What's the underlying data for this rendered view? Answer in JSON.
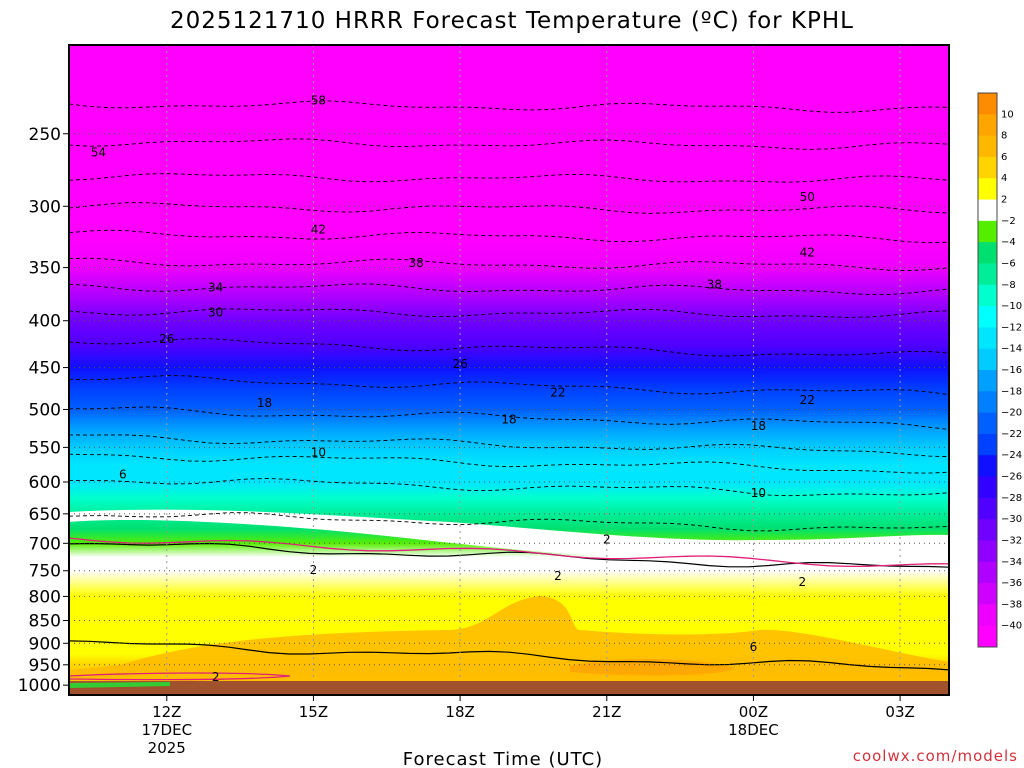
{
  "chart_data": {
    "type": "heatmap",
    "title": "2025121710 HRRR Forecast Temperature (ºC) for KPHL",
    "xlabel": "Forecast Time (UTC)",
    "ylabel": "",
    "watermark": "coolwx.com/models",
    "x_unit": "forecast hours from 2025-12-17 10Z",
    "x_range": [
      0,
      18
    ],
    "x_ticks": [
      {
        "hour": 2,
        "label": "12Z",
        "sub1": "17DEC",
        "sub2": "2025"
      },
      {
        "hour": 5,
        "label": "15Z",
        "sub1": "",
        "sub2": ""
      },
      {
        "hour": 8,
        "label": "18Z",
        "sub1": "",
        "sub2": ""
      },
      {
        "hour": 11,
        "label": "21Z",
        "sub1": "",
        "sub2": ""
      },
      {
        "hour": 14,
        "label": "00Z",
        "sub1": "18DEC",
        "sub2": ""
      },
      {
        "hour": 17,
        "label": "03Z",
        "sub1": "",
        "sub2": ""
      }
    ],
    "y_unit": "hPa",
    "y_range": [
      1025,
      200
    ],
    "y_ticks": [
      "250",
      "300",
      "350",
      "400",
      "450",
      "500",
      "550",
      "600",
      "650",
      "700",
      "750",
      "800",
      "850",
      "900",
      "950",
      "1000"
    ],
    "colorbar_labels": [
      "10",
      "8",
      "6",
      "4",
      "2",
      "−2",
      "−4",
      "−6",
      "−8",
      "−10",
      "−12",
      "−14",
      "−16",
      "−18",
      "−20",
      "−22",
      "−24",
      "−26",
      "−28",
      "−30",
      "−32",
      "−34",
      "−36",
      "−38",
      "−40"
    ],
    "colorbar_colors": [
      "#ff8c00",
      "#ffa500",
      "#ffb800",
      "#ffd400",
      "#ffff00",
      "#ffffff",
      "#55ee00",
      "#00e070",
      "#00ee99",
      "#00ffcc",
      "#00ffff",
      "#00e6ff",
      "#00ccff",
      "#00a0ff",
      "#0080ff",
      "#0060ff",
      "#0040ff",
      "#1010ff",
      "#3200ff",
      "#5000ff",
      "#7000ff",
      "#9000ff",
      "#b000ff",
      "#d000ff",
      "#ee00ff",
      "#ff00ff"
    ],
    "ground_color": "#a0522d",
    "profile_hpa": [
      [
        1000,
        6
      ],
      [
        975,
        8
      ],
      [
        950,
        7
      ],
      [
        925,
        5
      ],
      [
        900,
        6
      ],
      [
        850,
        4
      ],
      [
        800,
        4
      ],
      [
        750,
        3
      ],
      [
        725,
        1
      ],
      [
        700,
        -1
      ],
      [
        675,
        -2
      ],
      [
        650,
        -5
      ],
      [
        625,
        -7
      ],
      [
        600,
        -10
      ],
      [
        575,
        -11
      ],
      [
        550,
        -13
      ],
      [
        525,
        -15
      ],
      [
        500,
        -18
      ],
      [
        475,
        -21
      ],
      [
        450,
        -23
      ],
      [
        425,
        -26
      ],
      [
        400,
        -29
      ],
      [
        375,
        -32
      ],
      [
        350,
        -36
      ],
      [
        325,
        -39
      ],
      [
        300,
        -44
      ],
      [
        275,
        -48
      ],
      [
        250,
        -53
      ],
      [
        225,
        -56
      ],
      [
        200,
        -58
      ]
    ],
    "contours": [
      {
        "value": -58,
        "hpa": 232,
        "dash": true
      },
      {
        "value": -54,
        "hpa": 255,
        "dash": true
      },
      {
        "value": -50,
        "hpa": 278,
        "dash": true
      },
      {
        "value": -46,
        "hpa": 300,
        "dash": true
      },
      {
        "value": -42,
        "hpa": 322,
        "dash": true
      },
      {
        "value": -38,
        "hpa": 345,
        "dash": true
      },
      {
        "value": -34,
        "hpa": 367,
        "dash": true
      },
      {
        "value": -30,
        "hpa": 390,
        "dash": true
      },
      {
        "value": -26,
        "hpa": 420,
        "dash": true
      },
      {
        "value": -22,
        "hpa": 462,
        "dash": true
      },
      {
        "value": -18,
        "hpa": 500,
        "dash": true
      },
      {
        "value": -14,
        "hpa": 535,
        "dash": true
      },
      {
        "value": -10,
        "hpa": 560,
        "dash": true
      },
      {
        "value": -6,
        "hpa": 595,
        "dash": true
      },
      {
        "value": -2,
        "hpa": 650,
        "dash": true
      },
      {
        "value": 2,
        "hpa": 700,
        "dash": false
      },
      {
        "value": 6,
        "hpa": 900,
        "dash": false
      }
    ],
    "contour_labels": [
      {
        "text": "58",
        "hour": 5.1,
        "hpa": 230
      },
      {
        "text": "54",
        "hour": 0.6,
        "hpa": 262
      },
      {
        "text": "50",
        "hour": 15.1,
        "hpa": 293
      },
      {
        "text": "42",
        "hour": 5.1,
        "hpa": 318
      },
      {
        "text": "42",
        "hour": 15.1,
        "hpa": 337
      },
      {
        "text": "38",
        "hour": 7.1,
        "hpa": 346
      },
      {
        "text": "38",
        "hour": 13.2,
        "hpa": 365
      },
      {
        "text": "34",
        "hour": 3.0,
        "hpa": 368
      },
      {
        "text": "30",
        "hour": 3.0,
        "hpa": 392
      },
      {
        "text": "26",
        "hour": 2.0,
        "hpa": 419
      },
      {
        "text": "26",
        "hour": 8.0,
        "hpa": 446
      },
      {
        "text": "22",
        "hour": 10.0,
        "hpa": 479
      },
      {
        "text": "22",
        "hour": 15.1,
        "hpa": 488
      },
      {
        "text": "18",
        "hour": 4.0,
        "hpa": 492
      },
      {
        "text": "18",
        "hour": 9.0,
        "hpa": 513
      },
      {
        "text": "18",
        "hour": 14.1,
        "hpa": 521
      },
      {
        "text": "10",
        "hour": 5.1,
        "hpa": 557
      },
      {
        "text": "10",
        "hour": 14.1,
        "hpa": 617
      },
      {
        "text": "6",
        "hour": 1.1,
        "hpa": 589
      },
      {
        "text": "2",
        "hour": 11.0,
        "hpa": 693
      },
      {
        "text": "2",
        "hour": 5.0,
        "hpa": 749
      },
      {
        "text": "2",
        "hour": 10.0,
        "hpa": 760
      },
      {
        "text": "2",
        "hour": 15.0,
        "hpa": 772
      },
      {
        "text": "6",
        "hour": 14.0,
        "hpa": 908
      },
      {
        "text": "2",
        "hour": 3.0,
        "hpa": 980
      }
    ]
  }
}
